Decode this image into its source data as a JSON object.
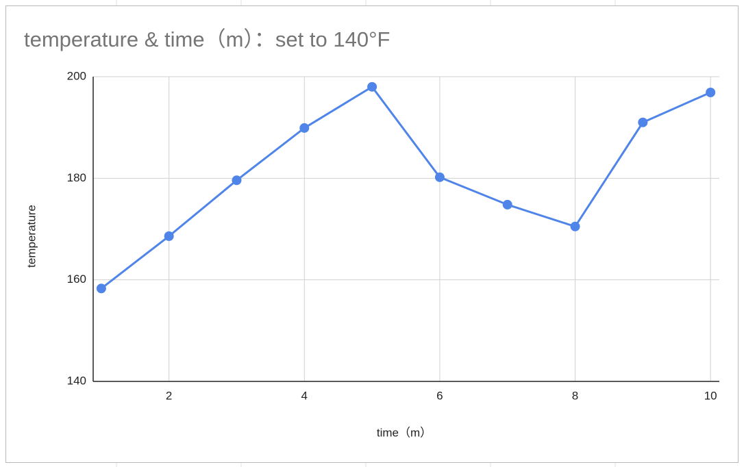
{
  "chart_data": {
    "type": "line",
    "title": "temperature & time（m）：set to 140°F",
    "x_label": "time（m）",
    "y_label": "temperature",
    "x": [
      1,
      2,
      3,
      4,
      5,
      6,
      7,
      8,
      9,
      10
    ],
    "values": [
      158.3,
      168.6,
      179.6,
      189.9,
      198,
      180.2,
      174.8,
      170.5,
      191,
      196.9
    ],
    "color": "#4f84e8",
    "xlim": [
      0.88,
      10.13
    ],
    "xticks": [
      2,
      4,
      6,
      8,
      10
    ],
    "ylim": [
      140,
      200
    ],
    "yticks": [
      140,
      160,
      180,
      200
    ],
    "grid": true
  }
}
